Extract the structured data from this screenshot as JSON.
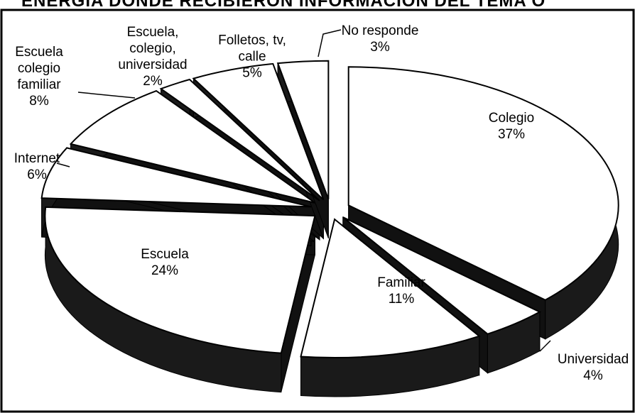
{
  "chart_data": {
    "type": "pie",
    "title": "ENERGIA DONDE RECIBIERON INFORMACION DEL TEMA O",
    "categories": [
      "Colegio",
      "Universidad",
      "Familiar",
      "Escuela",
      "Internet",
      "Escuela colegio familiar",
      "Escuela, colegio, universidad",
      "Folletos, tv, calle",
      "No responde"
    ],
    "values": [
      37,
      4,
      11,
      24,
      6,
      8,
      2,
      5,
      3
    ],
    "value_labels": [
      "37%",
      "4%",
      "11%",
      "24%",
      "6%",
      "8%",
      "2%",
      "5%",
      "3%"
    ],
    "color": "#ffffff"
  }
}
